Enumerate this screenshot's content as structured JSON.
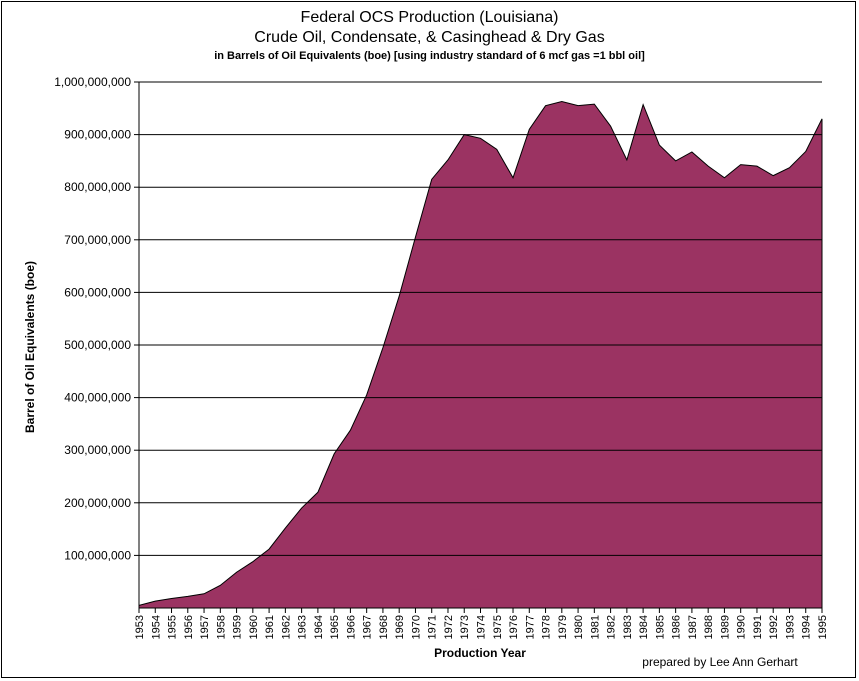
{
  "chart_data": {
    "type": "area",
    "title": "Federal OCS Production (Louisiana)",
    "subtitle": "Crude Oil, Condensate, & Casinghead & Dry Gas",
    "note": "in Barrels of Oil Equivalents (boe) [using industry standard of 6 mcf gas =1 bbl oil]",
    "xlabel": "Production Year",
    "ylabel": "Barrel of Oil Equivalents (boe)",
    "ylim": [
      0,
      1000000000
    ],
    "yticks": [
      "100,000,000",
      "200,000,000",
      "300,000,000",
      "400,000,000",
      "500,000,000",
      "600,000,000",
      "700,000,000",
      "800,000,000",
      "900,000,000",
      "1,000,000,000"
    ],
    "ytick_values": [
      100000000,
      200000000,
      300000000,
      400000000,
      500000000,
      600000000,
      700000000,
      800000000,
      900000000,
      1000000000
    ],
    "grid": true,
    "fill_color": "#9b3362",
    "x": [
      "1953",
      "1954",
      "1955",
      "1956",
      "1957",
      "1958",
      "1959",
      "1960",
      "1961",
      "1962",
      "1963",
      "1964",
      "1965",
      "1966",
      "1967",
      "1968",
      "1969",
      "1970",
      "1971",
      "1972",
      "1973",
      "1974",
      "1975",
      "1976",
      "1977",
      "1978",
      "1979",
      "1980",
      "1981",
      "1982",
      "1983",
      "1984",
      "1985",
      "1986",
      "1987",
      "1988",
      "1989",
      "1990",
      "1991",
      "1992",
      "1993",
      "1994",
      "1995"
    ],
    "values": [
      5000000,
      13000000,
      18000000,
      22000000,
      27000000,
      43000000,
      68000000,
      88000000,
      112000000,
      152000000,
      190000000,
      220000000,
      293000000,
      338000000,
      405000000,
      495000000,
      593000000,
      705000000,
      815000000,
      852000000,
      900000000,
      893000000,
      872000000,
      818000000,
      910000000,
      955000000,
      963000000,
      955000000,
      958000000,
      916000000,
      852000000,
      957000000,
      880000000,
      850000000,
      867000000,
      840000000,
      818000000,
      843000000,
      840000000,
      822000000,
      837000000,
      868000000,
      930000000
    ]
  },
  "credit": "prepared by Lee Ann Gerhart"
}
